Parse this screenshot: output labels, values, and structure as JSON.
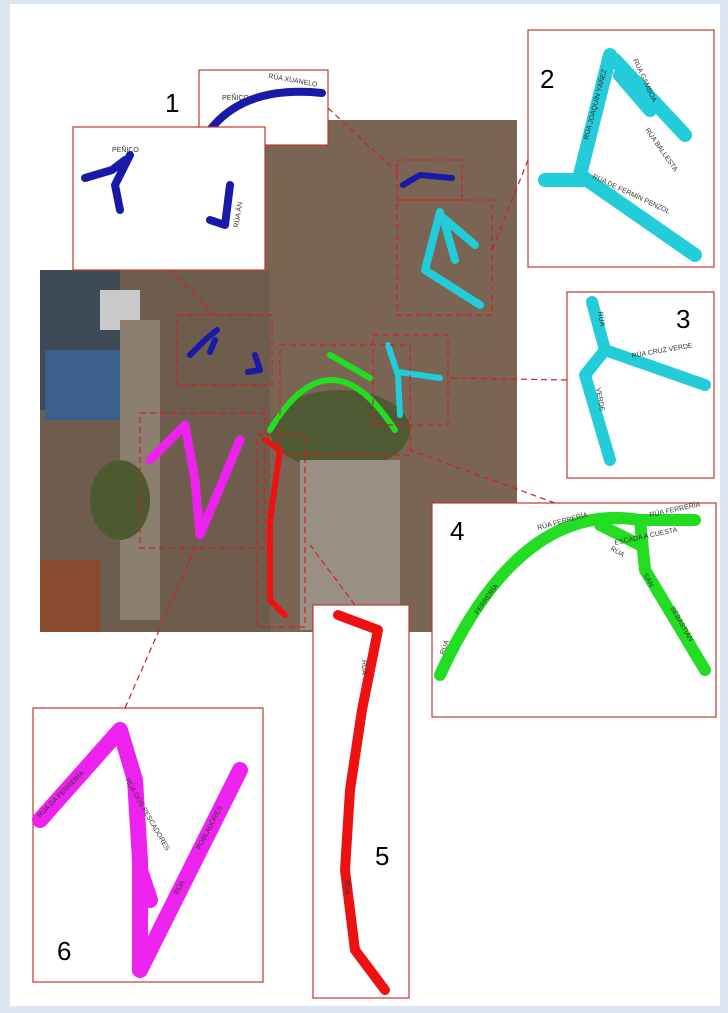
{
  "callouts": [
    {
      "number": "1",
      "streets": [
        "RÚA XUANELO",
        "PEÑICO",
        "PEÑICO",
        "RÚA ÁN"
      ]
    },
    {
      "number": "2",
      "streets": [
        "RÚA JOAQUÍN YÁÑEZ",
        "RÚA GAMBOA",
        "RÚA BALLESTA",
        "RÚA DE FERMÍN PENZOL"
      ]
    },
    {
      "number": "3",
      "streets": [
        "RÚA CRUZ VERDE",
        "RÚA",
        "VERDE"
      ]
    },
    {
      "number": "4",
      "streets": [
        "RÚA FERRERÍA",
        "FERRERÍA",
        "RÚA",
        "RÚA FERRERÍA",
        "ESCADA A CUESTA",
        "RÚA",
        "SAN",
        "SEBASTIÁN"
      ]
    },
    {
      "number": "5",
      "streets": [
        "RÚA",
        "RÚA"
      ]
    },
    {
      "number": "6",
      "streets": [
        "RÚA DA FERRERÍA",
        "RÚA DOS PESCADORES",
        "POBLADORES",
        "RÚA"
      ]
    }
  ]
}
